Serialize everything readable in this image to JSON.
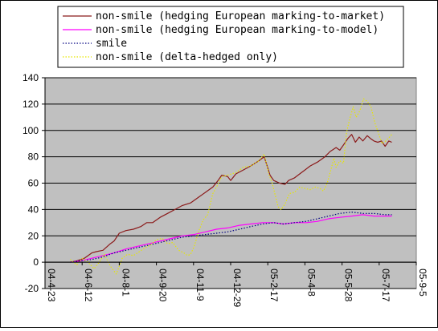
{
  "chart_data": {
    "type": "line",
    "ylim": [
      -20,
      140
    ],
    "yticks": [
      -20,
      0,
      20,
      40,
      60,
      80,
      100,
      120,
      140
    ],
    "x_tick_labels": [
      "04-4-23",
      "04-6-12",
      "04-8-1",
      "04-9-20",
      "04-11-9",
      "04-12-29",
      "05-2-17",
      "05-4-8",
      "05-5-28",
      "05-7-17",
      "05-9-5"
    ],
    "x_tick_dates": [
      "2004-04-23",
      "2004-06-12",
      "2004-08-01",
      "2004-09-20",
      "2004-11-09",
      "2004-12-29",
      "2005-02-17",
      "2005-04-08",
      "2005-05-28",
      "2005-07-17",
      "2005-09-05"
    ],
    "xlim": [
      "2004-04-23",
      "2005-09-05"
    ],
    "grid": "horizontal",
    "legend": "top",
    "series": [
      {
        "name": "non-smile (hedging European marking-to-market)",
        "color": "#8b1a1a",
        "dash": "solid",
        "points": [
          [
            "2004-05-27",
            0
          ],
          [
            "2004-06-05",
            1
          ],
          [
            "2004-06-15",
            3
          ],
          [
            "2004-06-25",
            7
          ],
          [
            "2004-07-01",
            8
          ],
          [
            "2004-07-10",
            9
          ],
          [
            "2004-07-20",
            14
          ],
          [
            "2004-07-25",
            16
          ],
          [
            "2004-08-01",
            22
          ],
          [
            "2004-08-10",
            24
          ],
          [
            "2004-08-20",
            25
          ],
          [
            "2004-08-30",
            27
          ],
          [
            "2004-09-07",
            30
          ],
          [
            "2004-09-15",
            30
          ],
          [
            "2004-09-25",
            34
          ],
          [
            "2004-10-05",
            37
          ],
          [
            "2004-10-15",
            40
          ],
          [
            "2004-10-25",
            43
          ],
          [
            "2004-11-05",
            45
          ],
          [
            "2004-11-15",
            49
          ],
          [
            "2004-11-25",
            53
          ],
          [
            "2004-12-05",
            57
          ],
          [
            "2004-12-12",
            62
          ],
          [
            "2004-12-17",
            66
          ],
          [
            "2004-12-25",
            65
          ],
          [
            "2004-12-29",
            62
          ],
          [
            "2005-01-05",
            67
          ],
          [
            "2005-01-15",
            70
          ],
          [
            "2005-01-25",
            73
          ],
          [
            "2005-02-05",
            77
          ],
          [
            "2005-02-12",
            80
          ],
          [
            "2005-02-15",
            75
          ],
          [
            "2005-02-20",
            66
          ],
          [
            "2005-02-25",
            62
          ],
          [
            "2005-03-05",
            60
          ],
          [
            "2005-03-12",
            59
          ],
          [
            "2005-03-17",
            62
          ],
          [
            "2005-03-25",
            64
          ],
          [
            "2005-04-01",
            67
          ],
          [
            "2005-04-08",
            70
          ],
          [
            "2005-04-15",
            73
          ],
          [
            "2005-04-25",
            76
          ],
          [
            "2005-05-05",
            80
          ],
          [
            "2005-05-12",
            84
          ],
          [
            "2005-05-20",
            87
          ],
          [
            "2005-05-25",
            85
          ],
          [
            "2005-05-30",
            89
          ],
          [
            "2005-06-05",
            94
          ],
          [
            "2005-06-10",
            97
          ],
          [
            "2005-06-15",
            91
          ],
          [
            "2005-06-20",
            95
          ],
          [
            "2005-06-25",
            92
          ],
          [
            "2005-07-01",
            96
          ],
          [
            "2005-07-05",
            94
          ],
          [
            "2005-07-10",
            92
          ],
          [
            "2005-07-15",
            91
          ],
          [
            "2005-07-20",
            92
          ],
          [
            "2005-07-25",
            88
          ],
          [
            "2005-07-30",
            92
          ],
          [
            "2005-08-03",
            91
          ]
        ]
      },
      {
        "name": "non-smile (hedging European marking-to-model)",
        "color": "#ff00ff",
        "dash": "solid",
        "points": [
          [
            "2004-05-27",
            0
          ],
          [
            "2004-06-10",
            1
          ],
          [
            "2004-06-25",
            3
          ],
          [
            "2004-07-10",
            5
          ],
          [
            "2004-07-25",
            7
          ],
          [
            "2004-08-10",
            10
          ],
          [
            "2004-08-25",
            12
          ],
          [
            "2004-09-10",
            14
          ],
          [
            "2004-09-25",
            16
          ],
          [
            "2004-10-10",
            18
          ],
          [
            "2004-10-25",
            20
          ],
          [
            "2004-11-10",
            21
          ],
          [
            "2004-11-25",
            23
          ],
          [
            "2004-12-10",
            25
          ],
          [
            "2004-12-25",
            26
          ],
          [
            "2005-01-10",
            28
          ],
          [
            "2005-01-25",
            29
          ],
          [
            "2005-02-10",
            30
          ],
          [
            "2005-02-25",
            30
          ],
          [
            "2005-03-10",
            29
          ],
          [
            "2005-03-25",
            30
          ],
          [
            "2005-04-10",
            30
          ],
          [
            "2005-04-25",
            31
          ],
          [
            "2005-05-10",
            33
          ],
          [
            "2005-05-25",
            34
          ],
          [
            "2005-06-10",
            35
          ],
          [
            "2005-06-25",
            36
          ],
          [
            "2005-07-10",
            35
          ],
          [
            "2005-07-25",
            35
          ],
          [
            "2005-08-03",
            35
          ]
        ]
      },
      {
        "name": "smile",
        "color": "#000080",
        "dash": "dotted",
        "points": [
          [
            "2004-05-27",
            0
          ],
          [
            "2004-06-10",
            1
          ],
          [
            "2004-06-25",
            2
          ],
          [
            "2004-07-10",
            4
          ],
          [
            "2004-07-25",
            7
          ],
          [
            "2004-08-10",
            9
          ],
          [
            "2004-08-25",
            11
          ],
          [
            "2004-09-10",
            13
          ],
          [
            "2004-09-25",
            15
          ],
          [
            "2004-10-10",
            17
          ],
          [
            "2004-10-25",
            19
          ],
          [
            "2004-11-10",
            20
          ],
          [
            "2004-11-25",
            21
          ],
          [
            "2004-12-10",
            22
          ],
          [
            "2004-12-25",
            23
          ],
          [
            "2005-01-10",
            25
          ],
          [
            "2005-01-25",
            27
          ],
          [
            "2005-02-10",
            29
          ],
          [
            "2005-02-25",
            30
          ],
          [
            "2005-03-10",
            29
          ],
          [
            "2005-03-25",
            30
          ],
          [
            "2005-04-10",
            31
          ],
          [
            "2005-04-25",
            33
          ],
          [
            "2005-05-10",
            35
          ],
          [
            "2005-05-25",
            37
          ],
          [
            "2005-06-10",
            38
          ],
          [
            "2005-06-25",
            37
          ],
          [
            "2005-07-10",
            37
          ],
          [
            "2005-07-25",
            36
          ],
          [
            "2005-08-03",
            36
          ]
        ]
      },
      {
        "name": "non-smile (delta-hedged only)",
        "color": "#e6e600",
        "dash": "dotted",
        "points": [
          [
            "2004-05-27",
            2
          ],
          [
            "2004-06-05",
            -2
          ],
          [
            "2004-06-12",
            3
          ],
          [
            "2004-06-20",
            0
          ],
          [
            "2004-06-28",
            -5
          ],
          [
            "2004-07-05",
            0
          ],
          [
            "2004-07-12",
            6
          ],
          [
            "2004-07-20",
            -3
          ],
          [
            "2004-07-28",
            -9
          ],
          [
            "2004-08-05",
            3
          ],
          [
            "2004-08-12",
            6
          ],
          [
            "2004-08-20",
            5
          ],
          [
            "2004-08-28",
            8
          ],
          [
            "2004-09-05",
            11
          ],
          [
            "2004-09-12",
            13
          ],
          [
            "2004-09-20",
            17
          ],
          [
            "2004-09-28",
            18
          ],
          [
            "2004-10-05",
            14
          ],
          [
            "2004-10-12",
            15
          ],
          [
            "2004-10-20",
            9
          ],
          [
            "2004-10-27",
            7
          ],
          [
            "2004-11-01",
            5
          ],
          [
            "2004-11-05",
            6
          ],
          [
            "2004-11-10",
            12
          ],
          [
            "2004-11-15",
            22
          ],
          [
            "2004-11-22",
            32
          ],
          [
            "2004-11-28",
            36
          ],
          [
            "2004-12-05",
            52
          ],
          [
            "2004-12-10",
            57
          ],
          [
            "2004-12-17",
            65
          ],
          [
            "2004-12-25",
            66
          ],
          [
            "2005-01-05",
            68
          ],
          [
            "2005-01-15",
            72
          ],
          [
            "2005-01-25",
            73
          ],
          [
            "2005-02-05",
            77
          ],
          [
            "2005-02-12",
            82
          ],
          [
            "2005-02-15",
            75
          ],
          [
            "2005-02-19",
            66
          ],
          [
            "2005-02-23",
            60
          ],
          [
            "2005-02-27",
            51
          ],
          [
            "2005-03-03",
            42
          ],
          [
            "2005-03-07",
            40
          ],
          [
            "2005-03-12",
            44
          ],
          [
            "2005-03-18",
            52
          ],
          [
            "2005-03-25",
            53
          ],
          [
            "2005-04-01",
            57
          ],
          [
            "2005-04-08",
            56
          ],
          [
            "2005-04-15",
            55
          ],
          [
            "2005-04-22",
            57
          ],
          [
            "2005-04-28",
            56
          ],
          [
            "2005-05-03",
            54
          ],
          [
            "2005-05-08",
            60
          ],
          [
            "2005-05-13",
            70
          ],
          [
            "2005-05-17",
            79
          ],
          [
            "2005-05-20",
            72
          ],
          [
            "2005-05-25",
            77
          ],
          [
            "2005-05-30",
            75
          ],
          [
            "2005-06-03",
            98
          ],
          [
            "2005-06-07",
            108
          ],
          [
            "2005-06-12",
            118
          ],
          [
            "2005-06-16",
            110
          ],
          [
            "2005-06-21",
            115
          ],
          [
            "2005-06-26",
            124
          ],
          [
            "2005-07-01",
            122
          ],
          [
            "2005-07-06",
            118
          ],
          [
            "2005-07-11",
            106
          ],
          [
            "2005-07-16",
            98
          ],
          [
            "2005-07-21",
            90
          ],
          [
            "2005-07-26",
            92
          ],
          [
            "2005-07-31",
            95
          ],
          [
            "2005-08-03",
            97
          ]
        ]
      }
    ]
  }
}
